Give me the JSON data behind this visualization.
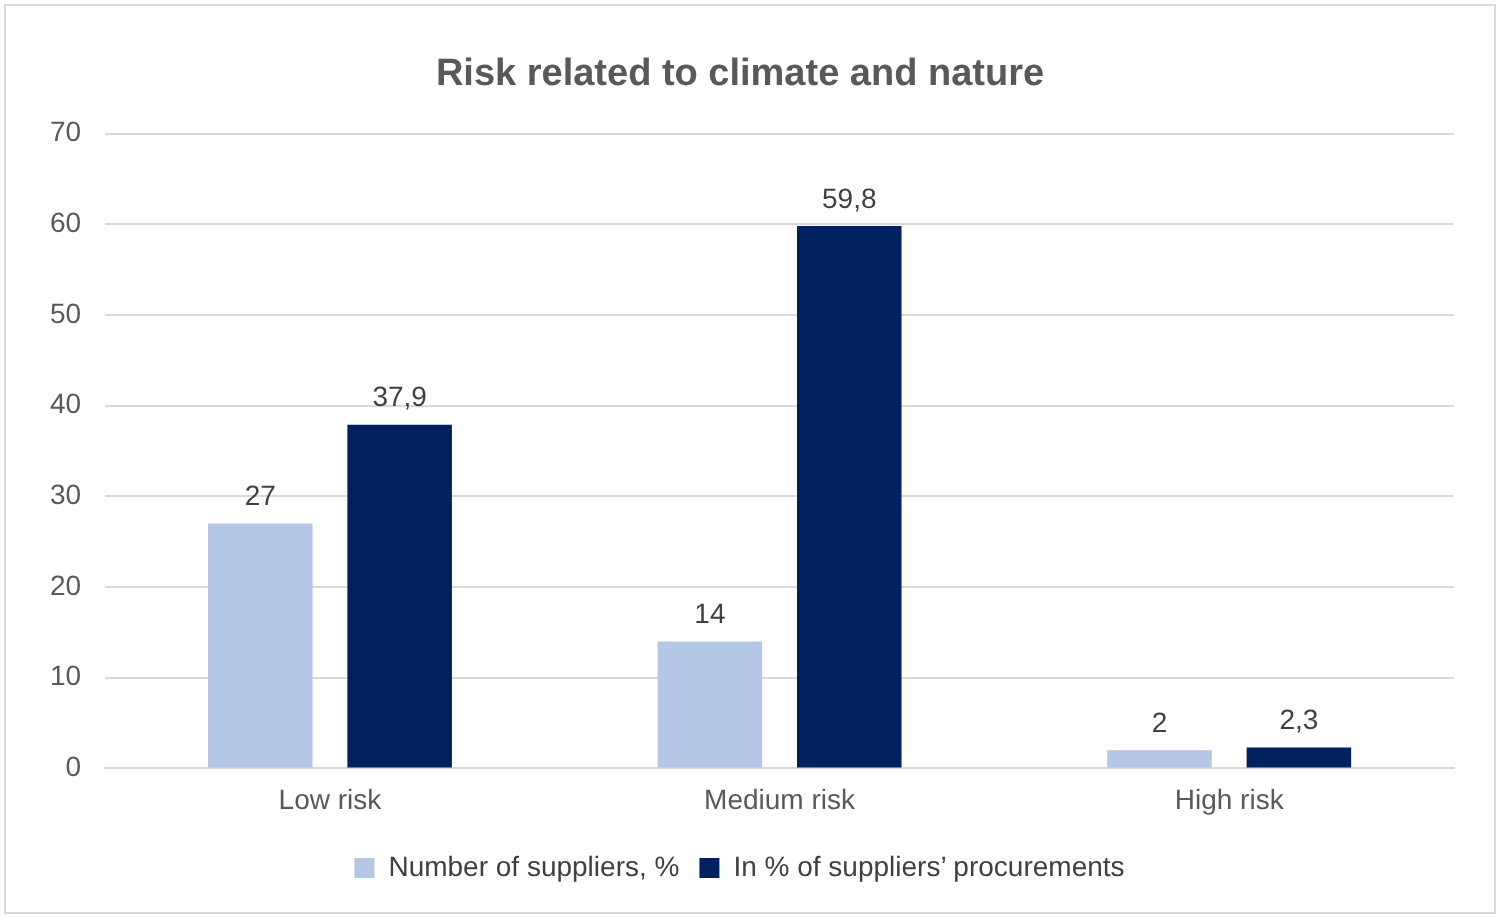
{
  "chart_data": {
    "type": "bar",
    "title": "Risk related to climate and nature",
    "categories": [
      "Low risk",
      "Medium risk",
      "High risk"
    ],
    "series": [
      {
        "name": "Number of suppliers, %",
        "color": "#b4c7e7",
        "values": [
          27,
          14,
          2
        ],
        "value_labels": [
          "27",
          "14",
          "2"
        ]
      },
      {
        "name": "In % of suppliers’ procurements",
        "color": "#002060",
        "values": [
          37.9,
          59.8,
          2.3
        ],
        "value_labels": [
          "37,9",
          "59,8",
          "2,3"
        ]
      }
    ],
    "ylim": [
      0,
      70
    ],
    "yticks": [
      0,
      10,
      20,
      30,
      40,
      50,
      60,
      70
    ],
    "grid": "y",
    "legend": "bottom"
  }
}
